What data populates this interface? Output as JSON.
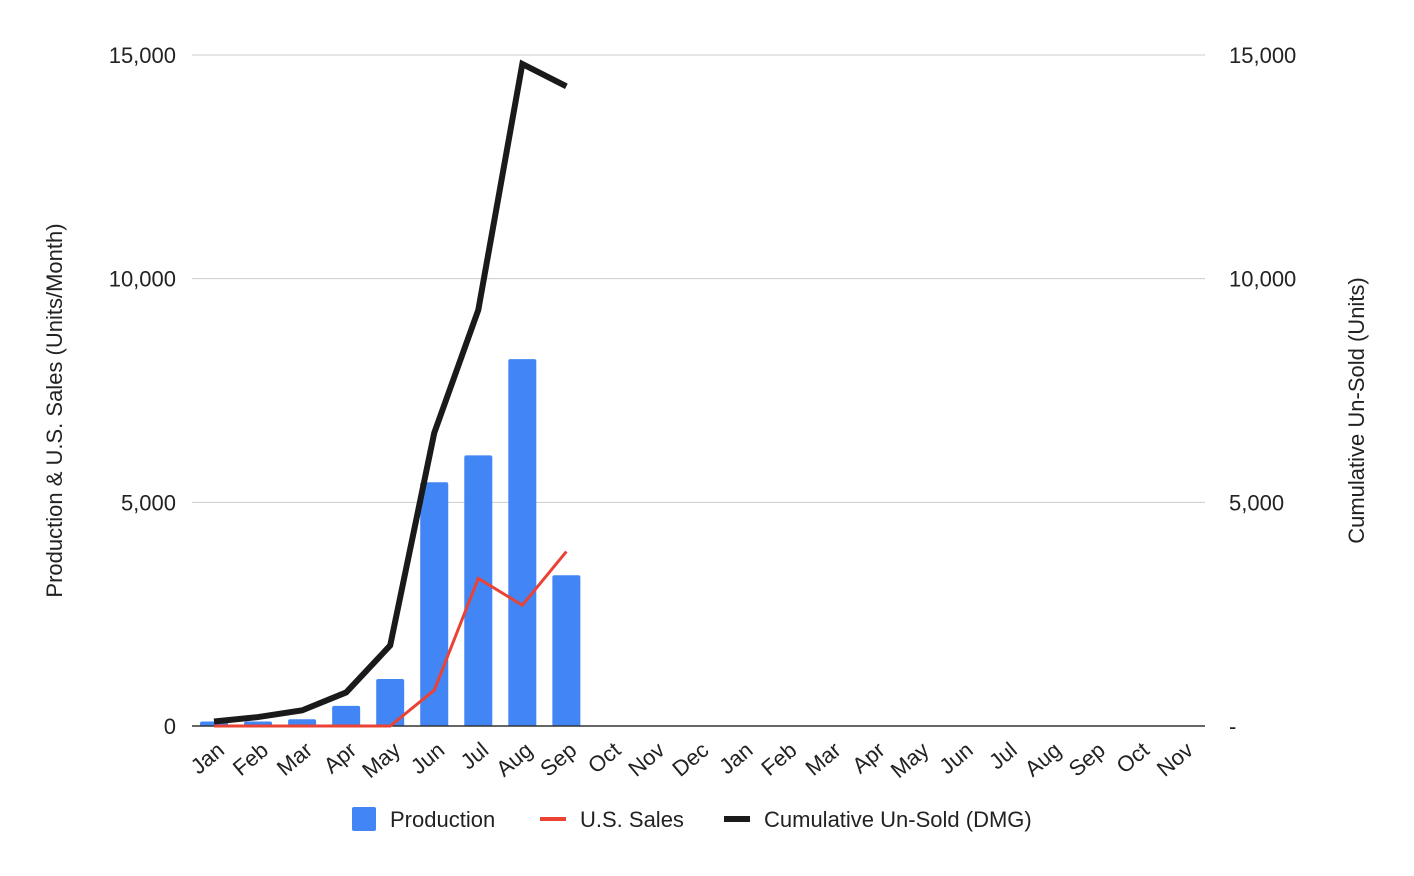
{
  "chart_data": {
    "type": "bar",
    "categories": [
      "Jan",
      "Feb",
      "Mar",
      "Apr",
      "May",
      "Jun",
      "Jul",
      "Aug",
      "Sep",
      "Oct",
      "Nov",
      "Dec",
      "Jan",
      "Feb",
      "Mar",
      "Apr",
      "May",
      "Jun",
      "Jul",
      "Aug",
      "Sep",
      "Oct",
      "Nov"
    ],
    "series": [
      {
        "name": "Production",
        "type": "bar",
        "axis": "left",
        "color": "#4285F4",
        "values": [
          100,
          100,
          150,
          450,
          1050,
          5450,
          6050,
          8200,
          3370,
          null,
          null,
          null,
          null,
          null,
          null,
          null,
          null,
          null,
          null,
          null,
          null,
          null,
          null
        ]
      },
      {
        "name": "U.S. Sales",
        "type": "line",
        "axis": "left",
        "color": "#EA4335",
        "values": [
          0,
          0,
          0,
          0,
          0,
          800,
          3300,
          2700,
          3900,
          null,
          null,
          null,
          null,
          null,
          null,
          null,
          null,
          null,
          null,
          null,
          null,
          null,
          null
        ]
      },
      {
        "name": "Cumulative Un-Sold (DMG)",
        "type": "line",
        "axis": "right",
        "color": "#1a1a1a",
        "values": [
          100,
          200,
          350,
          750,
          1800,
          6550,
          9300,
          14800,
          14300,
          null,
          null,
          null,
          null,
          null,
          null,
          null,
          null,
          null,
          null,
          null,
          null,
          null,
          null
        ]
      }
    ],
    "ylabel": "Production & U.S. Sales (Units/Month)",
    "y2label": "Cumulative Un-Sold (Units)",
    "ylim": [
      0,
      15000
    ],
    "y2lim": [
      0,
      15000
    ],
    "yticks": [
      0,
      5000,
      10000,
      15000
    ],
    "ytick_labels": [
      "0",
      "5,000",
      "10,000",
      "15,000"
    ],
    "y2tick_labels": [
      "-",
      "5,000",
      "10,000",
      "15,000"
    ],
    "grid": true,
    "legend_position": "bottom"
  }
}
